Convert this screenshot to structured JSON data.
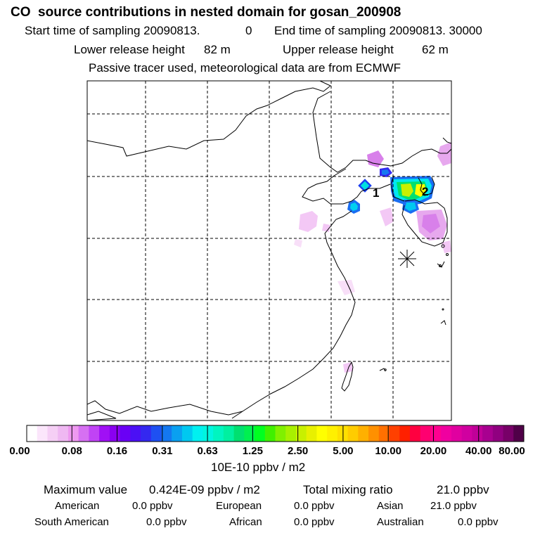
{
  "header": {
    "title": "CO  source contributions in nested domain for gosan_200908",
    "start_label": "Start time of sampling 20090813.",
    "start_hour": "0",
    "end_label": "End time of sampling 20090813. 30000",
    "lower_label": "Lower release height",
    "lower_value": "82 m",
    "upper_label": "Upper release height",
    "upper_value": "62 m",
    "tracer_note": "Passive tracer used, meteorological data are from ECMWF"
  },
  "map": {
    "site_labels": [
      "1",
      "2"
    ],
    "receptor_marker": "star-marker-icon"
  },
  "colorbar": {
    "ticks": [
      "0.00",
      "0.08",
      "0.16",
      "0.31",
      "0.63",
      "1.25",
      "2.50",
      "5.00",
      "10.00",
      "20.00",
      "40.00",
      "80.00"
    ],
    "units": "10E-10 ppbv / m2",
    "colors": [
      "#ffffff",
      "#fbe6fb",
      "#f5cff5",
      "#efb8f2",
      "#ee99f0",
      "#d670f2",
      "#c043f5",
      "#a010f5",
      "#8a00f0",
      "#6a00f5",
      "#4b10f5",
      "#3428f0",
      "#1e50f2",
      "#1478f0",
      "#0aa0f0",
      "#00c8f0",
      "#00f0f0",
      "#00f5e0",
      "#00f5c0",
      "#00f0a0",
      "#00e070",
      "#00f050",
      "#00ff20",
      "#40f000",
      "#80f000",
      "#a8f000",
      "#c8f000",
      "#e8f000",
      "#ffff00",
      "#fff000",
      "#ffe000",
      "#ffcc00",
      "#ffb000",
      "#ff9000",
      "#ff7000",
      "#ff4000",
      "#ff2000",
      "#ff0040",
      "#ff0070",
      "#ff0090",
      "#f000a0",
      "#e000a0",
      "#d000a0",
      "#c00098",
      "#a80090",
      "#900080",
      "#780068",
      "#500048"
    ]
  },
  "footer": {
    "max_label": "Maximum value",
    "max_value": "0.424E-09 ppbv / m2",
    "total_label": "Total mixing ratio",
    "total_value": "21.0 ppbv",
    "american_label": "American",
    "american_value": "0.0 ppbv",
    "european_label": "European",
    "european_value": "0.0 ppbv",
    "asian_label": "Asian",
    "asian_value": "21.0 ppbv",
    "south_american_label": "South American",
    "south_american_value": "0.0 ppbv",
    "african_label": "African",
    "african_value": "0.0 ppbv",
    "australian_label": "Australian",
    "australian_value": "0.0 ppbv"
  }
}
